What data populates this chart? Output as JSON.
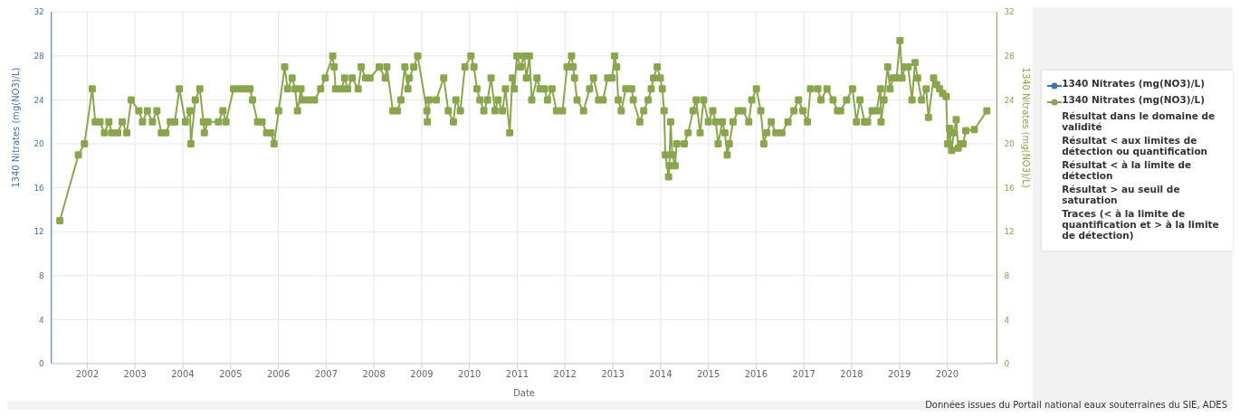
{
  "chart_data": {
    "type": "line",
    "xlabel": "Date",
    "ylabel": "1340 Nitrates (mg(NO3)/L)",
    "y2label": "1340 Nitrates (mg(NO3)/L)",
    "xlim": [
      "2001-04-01",
      "2021-01-15"
    ],
    "xticks": [
      {
        "value": "2002-01-01",
        "label": "2002"
      },
      {
        "value": "2003-01-01",
        "label": "2003"
      },
      {
        "value": "2004-01-01",
        "label": "2004"
      },
      {
        "value": "2005-01-01",
        "label": "2005"
      },
      {
        "value": "2006-01-01",
        "label": "2006"
      },
      {
        "value": "2007-01-01",
        "label": "2007"
      },
      {
        "value": "2008-01-01",
        "label": "2008"
      },
      {
        "value": "2009-01-01",
        "label": "2009"
      },
      {
        "value": "2010-01-01",
        "label": "2010"
      },
      {
        "value": "2011-01-01",
        "label": "2011"
      },
      {
        "value": "2012-01-01",
        "label": "2012"
      },
      {
        "value": "2013-01-01",
        "label": "2013"
      },
      {
        "value": "2014-01-01",
        "label": "2014"
      },
      {
        "value": "2015-01-01",
        "label": "2015"
      },
      {
        "value": "2016-01-01",
        "label": "2016"
      },
      {
        "value": "2017-01-01",
        "label": "2017"
      },
      {
        "value": "2018-01-01",
        "label": "2018"
      },
      {
        "value": "2019-01-01",
        "label": "2019"
      },
      {
        "value": "2020-01-01",
        "label": "2020"
      }
    ],
    "ylim": [
      0,
      32
    ],
    "yticks": [
      0,
      4,
      8,
      12,
      16,
      20,
      24,
      28,
      32
    ],
    "y2lim": [
      0,
      32
    ],
    "y2ticks": [
      0,
      4,
      8,
      12,
      16,
      20,
      24,
      28,
      32
    ],
    "grid": true,
    "legend": "right",
    "marker": "square",
    "line_style": "solid",
    "annotations": [
      "Données issues du Portail national eaux souterraines du SIE, ADES"
    ],
    "series": [
      {
        "name": "1340 Nitrates (mg(NO3)/L)",
        "color": "#4572a7"
      },
      {
        "name": "1340 Nitrates (mg(NO3)/L)",
        "color": "#89a54e",
        "axis": "y2",
        "x": [
          "2001-06-05",
          "2001-10-25",
          "2001-12-10",
          "2002-02-08",
          "2002-03-03",
          "2002-04-08",
          "2002-05-12",
          "2002-06-15",
          "2002-07-08",
          "2002-08-22",
          "2002-09-25",
          "2002-10-30",
          "2002-12-03",
          "2003-01-30",
          "2003-02-27",
          "2003-04-05",
          "2003-05-14",
          "2003-06-17",
          "2003-07-21",
          "2003-08-25",
          "2003-09-28",
          "2003-11-01",
          "2003-12-06",
          "2004-01-21",
          "2004-02-25",
          "2004-03-03",
          "2004-04-06",
          "2004-05-10",
          "2004-06-07",
          "2004-06-14",
          "2004-07-11",
          "2004-09-30",
          "2004-11-03",
          "2004-11-26",
          "2005-01-23",
          "2005-03-10",
          "2005-04-25",
          "2005-05-29",
          "2005-06-17",
          "2005-07-26",
          "2005-08-29",
          "2005-10-03",
          "2005-11-06",
          "2005-11-29",
          "2006-01-03",
          "2006-02-18",
          "2006-03-12",
          "2006-04-16",
          "2006-05-09",
          "2006-05-27",
          "2006-06-23",
          "2006-07-04",
          "2006-08-20",
          "2006-10-04",
          "2006-11-20",
          "2006-12-25",
          "2007-02-20",
          "2007-03-03",
          "2007-03-14",
          "2007-04-30",
          "2007-05-22",
          "2007-06-15",
          "2007-07-19",
          "2007-09-03",
          "2007-09-26",
          "2007-10-30",
          "2007-12-03",
          "2008-02-11",
          "2008-03-28",
          "2008-04-09",
          "2008-05-25",
          "2008-06-29",
          "2008-07-26",
          "2008-08-25",
          "2008-09-17",
          "2008-09-28",
          "2008-11-01",
          "2008-12-01",
          "2009-02-09",
          "2009-02-13",
          "2009-02-25",
          "2009-04-22",
          "2009-06-18",
          "2009-07-23",
          "2009-08-31",
          "2009-09-19",
          "2009-10-23",
          "2009-11-27",
          "2010-01-12",
          "2010-02-04",
          "2010-02-27",
          "2010-03-22",
          "2010-04-21",
          "2010-05-19",
          "2010-06-15",
          "2010-07-15",
          "2010-08-07",
          "2010-09-10",
          "2010-10-03",
          "2010-11-04",
          "2010-11-25",
          "2010-12-10",
          "2010-12-29",
          "2011-01-26",
          "2011-02-22",
          "2011-03-12",
          "2011-04-04",
          "2011-04-22",
          "2011-06-01",
          "2011-06-24",
          "2011-07-28",
          "2011-08-20",
          "2011-09-24",
          "2011-10-28",
          "2011-12-13",
          "2012-01-17",
          "2012-02-20",
          "2012-03-03",
          "2012-03-14",
          "2012-04-02",
          "2012-05-22",
          "2012-07-07",
          "2012-08-06",
          "2012-09-14",
          "2012-10-18",
          "2012-11-22",
          "2012-12-26",
          "2013-01-14",
          "2013-01-30",
          "2013-02-11",
          "2013-03-06",
          "2013-04-10",
          "2013-05-25",
          "2013-06-06",
          "2013-07-26",
          "2013-08-25",
          "2013-09-28",
          "2013-10-21",
          "2013-11-08",
          "2013-12-06",
          "2013-12-29",
          "2014-01-14",
          "2014-01-28",
          "2014-02-06",
          "2014-03-03",
          "2014-03-08",
          "2014-03-19",
          "2014-03-31",
          "2014-04-22",
          "2014-05-04",
          "2014-07-01",
          "2014-07-30",
          "2014-09-07",
          "2014-09-30",
          "2014-10-30",
          "2014-11-26",
          "2015-01-01",
          "2015-02-04",
          "2015-02-27",
          "2015-03-17",
          "2015-04-18",
          "2015-05-07",
          "2015-05-25",
          "2015-06-10",
          "2015-07-09",
          "2015-08-17",
          "2015-09-21",
          "2015-11-06",
          "2015-11-29",
          "2016-01-03",
          "2016-02-06",
          "2016-02-29",
          "2016-03-22",
          "2016-04-26",
          "2016-05-31",
          "2016-07-16",
          "2016-09-01",
          "2016-10-16",
          "2016-11-20",
          "2016-12-24",
          "2017-01-28",
          "2017-02-20",
          "2017-04-17",
          "2017-05-11",
          "2017-06-26",
          "2017-08-11",
          "2017-09-14",
          "2017-10-08",
          "2017-11-23",
          "2018-01-07",
          "2018-02-06",
          "2018-03-05",
          "2018-04-09",
          "2018-05-02",
          "2018-06-06",
          "2018-07-10",
          "2018-08-09",
          "2018-08-13",
          "2018-09-05",
          "2018-10-03",
          "2018-10-21",
          "2018-11-13",
          "2018-12-10",
          "2019-01-05",
          "2019-01-21",
          "2019-02-13",
          "2019-03-08",
          "2019-04-07",
          "2019-04-30",
          "2019-05-20",
          "2019-06-19",
          "2019-07-24",
          "2019-08-11",
          "2019-09-19",
          "2019-10-12",
          "2019-11-04",
          "2019-11-27",
          "2019-12-24",
          "2020-01-05",
          "2020-01-19",
          "2020-02-04",
          "2020-02-20",
          "2020-03-10",
          "2020-03-25",
          "2020-04-13",
          "2020-05-02",
          "2020-05-22",
          "2020-07-26",
          "2020-10-30"
        ],
        "values": [
          13,
          19,
          20,
          25,
          22,
          22,
          21,
          22,
          21,
          21,
          22,
          21,
          24,
          23,
          22,
          23,
          22,
          23,
          21,
          21,
          22,
          22,
          25,
          22,
          23,
          20,
          24,
          25,
          22,
          21,
          22,
          22,
          23,
          22,
          25,
          25,
          25,
          25,
          24,
          22,
          22,
          21,
          21,
          20,
          23,
          27,
          25,
          26,
          25,
          23,
          25,
          24,
          24,
          24,
          25,
          26,
          28,
          27,
          25,
          25,
          26,
          25,
          26,
          25,
          27,
          26,
          26,
          27,
          26,
          27,
          23,
          23,
          24,
          27,
          25,
          26,
          27,
          28,
          23,
          22,
          24,
          24,
          26,
          23,
          22,
          24,
          23,
          27,
          28,
          27,
          25,
          24,
          23,
          24,
          26,
          23,
          24,
          23,
          25,
          21,
          26,
          25,
          28,
          27,
          28,
          26,
          28,
          24,
          26,
          25,
          25,
          24,
          25,
          23,
          23,
          27,
          28,
          27,
          26,
          24,
          23,
          25,
          26,
          24,
          24,
          26,
          26,
          28,
          27,
          24,
          23,
          25,
          25,
          24,
          22,
          23,
          24,
          25,
          26,
          27,
          26,
          25,
          23,
          19,
          17,
          18,
          22,
          19,
          18,
          20,
          20,
          21,
          23,
          24,
          21,
          24,
          22,
          23,
          22,
          20,
          22,
          21,
          19,
          20,
          22,
          23,
          23,
          22,
          24,
          25,
          23,
          20,
          21,
          22,
          21,
          21,
          22,
          23,
          24,
          23,
          22,
          25,
          25,
          24,
          25,
          24,
          23,
          23,
          24,
          25,
          22,
          24,
          22,
          22,
          23,
          23,
          25,
          22,
          24,
          27,
          25,
          26,
          26,
          29.4,
          26,
          27,
          27,
          24,
          27.4,
          26,
          24,
          25,
          22.4,
          26,
          25.4,
          25,
          24.6,
          24.3,
          20,
          21.4,
          19.4,
          21,
          22.2,
          19.6,
          20,
          20,
          21.2,
          21.3,
          23
        ]
      },
      {
        "name": "Résultat dans le domaine de validité"
      },
      {
        "name": "Résultat < aux limites de détection ou quantification"
      },
      {
        "name": "Résultat < à la limite de détection"
      },
      {
        "name": "Résultat > au seuil de saturation"
      },
      {
        "name": "Traces (< à la limite de quantification et > à la limite de détection)"
      }
    ]
  }
}
